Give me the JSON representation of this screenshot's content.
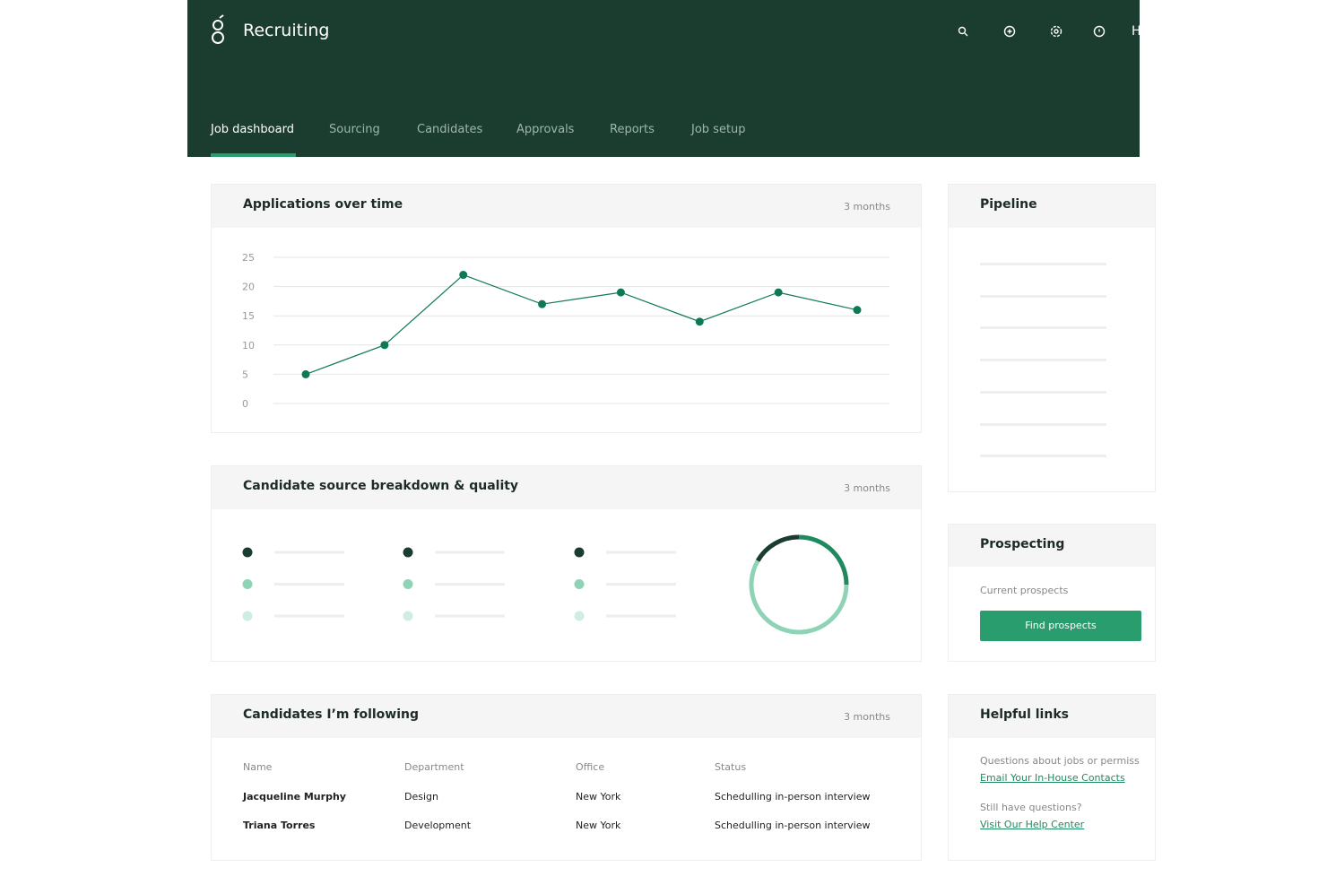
{
  "header": {
    "title": "Recruiting",
    "user_initial": "H"
  },
  "nav": {
    "tabs": [
      "Job dashboard",
      "Sourcing",
      "Candidates",
      "Approvals",
      "Reports",
      "Job setup"
    ],
    "active": 0
  },
  "applications": {
    "title": "Applications over time",
    "period": "3 months",
    "chart": {
      "type": "line",
      "categories": [
        null,
        null,
        null,
        null,
        null,
        null,
        null,
        null
      ],
      "values": [
        5,
        10,
        22,
        17,
        19,
        14,
        19,
        16
      ],
      "ylim": [
        0,
        25
      ],
      "yticks": [
        0,
        5,
        10,
        15,
        20,
        25
      ],
      "color": "#0e7a55",
      "grid": true
    }
  },
  "source": {
    "title": "Candidate source breakdown & quality",
    "period": "3 months"
  },
  "following": {
    "title": "Candidates I’m following",
    "period": "3 months",
    "table": {
      "header": [
        "Name",
        "Department",
        "Office",
        "Status"
      ],
      "rows": [
        [
          "Jacqueline Murphy",
          "Design",
          "New York",
          "Schedulling in-person interview"
        ],
        [
          "Triana Torres",
          "Development",
          "New York",
          "Schedulling in-person interview"
        ]
      ]
    }
  },
  "pipeline": {
    "title": "Pipeline"
  },
  "prospecting": {
    "title": "Prospecting",
    "label": "Current prospects",
    "button": "Find prospects"
  },
  "links": {
    "title": "Helpful links",
    "items": [
      {
        "question": "Questions about jobs or permiss",
        "link": "Email Your In-House Contacts"
      },
      {
        "question": "Still have questions?",
        "link": "Visit Our Help Center"
      }
    ]
  }
}
